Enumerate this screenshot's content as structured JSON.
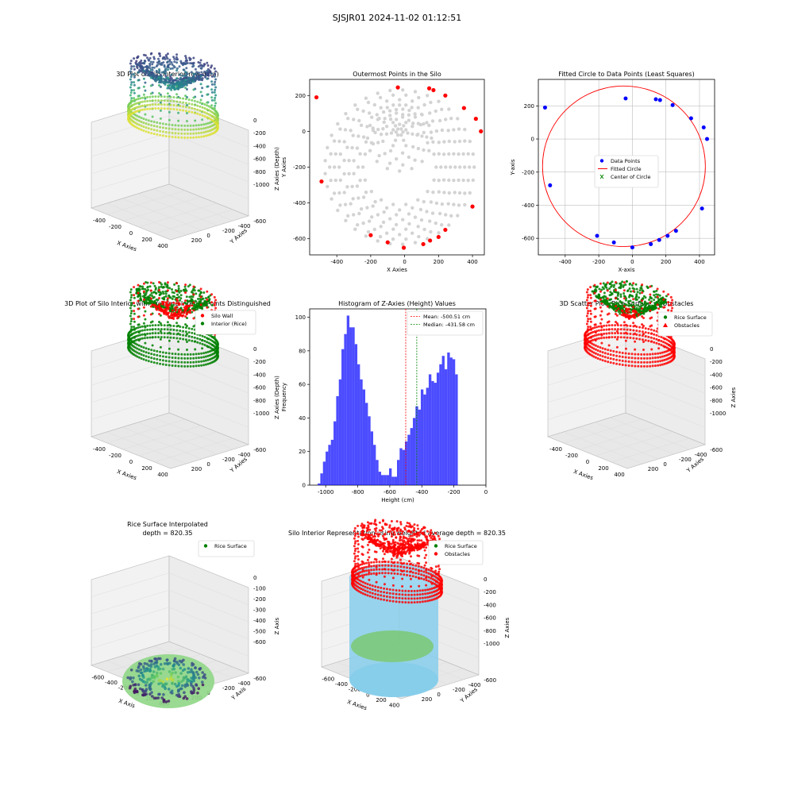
{
  "figure": {
    "suptitle": "SJSJR01 2024-11-02 01:12:51"
  },
  "colors": {
    "wall": "#ff0000",
    "interior": "#008000",
    "data_points": "#0000ff",
    "fitted_circle": "#ff0000",
    "histogram": "#0000ff",
    "mean_line": "#ff0000",
    "median_line": "#008000",
    "outer_points": "#ff0000",
    "inner_points": "#d3d3d3",
    "silo_cylinder": "#87ceeb"
  },
  "chart_data": [
    {
      "id": "p1",
      "type": "scatter3d",
      "title": "3D Plot of Silo Interior(row data)",
      "xlabel": "X Axies",
      "ylabel": "Y Axies",
      "zlabel": "Z Axies (Depth)",
      "xticks": [
        "-400",
        "-200",
        "0",
        "200",
        "400"
      ],
      "yticks": [
        "-600",
        "-400",
        "-200",
        "0",
        "200"
      ],
      "zticks": [
        "0",
        "-200",
        "-400",
        "-600",
        "-800",
        "-1000"
      ],
      "colormap": "viridis",
      "zlim": [
        -1000,
        0
      ]
    },
    {
      "id": "p2",
      "type": "scatter",
      "title": "Outermost Points in the Silo",
      "xlabel": "X Axies",
      "ylabel": "Y Axies",
      "xlim": [
        -560,
        470
      ],
      "ylim": [
        -690,
        290
      ],
      "xticks": [
        -400,
        -200,
        0,
        200,
        400
      ],
      "yticks": [
        -600,
        -400,
        -200,
        0,
        200
      ],
      "outer_points": [
        [
          -520,
          190
        ],
        [
          -490,
          -280
        ],
        [
          -200,
          -580
        ],
        [
          -100,
          -620
        ],
        [
          -5,
          -650
        ],
        [
          110,
          -630
        ],
        [
          150,
          -610
        ],
        [
          200,
          -590
        ],
        [
          240,
          -550
        ],
        [
          400,
          -420
        ],
        [
          450,
          0
        ],
        [
          420,
          70
        ],
        [
          350,
          130
        ],
        [
          240,
          200
        ],
        [
          170,
          230
        ],
        [
          145,
          240
        ],
        [
          -40,
          245
        ]
      ],
      "grid": false
    },
    {
      "id": "p3",
      "type": "scatter",
      "title": "Fitted Circle to Data Points (Least Squares)",
      "xlabel": "X-axis",
      "ylabel": "Y-axis",
      "xlim": [
        -560,
        490
      ],
      "ylim": [
        -700,
        360
      ],
      "xticks": [
        -400,
        -200,
        0,
        200,
        400
      ],
      "yticks": [
        -600,
        -400,
        -200,
        0,
        200
      ],
      "legend": [
        "Data Points",
        "Fitted Circle",
        "Center of Circle"
      ],
      "legend_loc": "center",
      "data_points": [
        [
          -520,
          190
        ],
        [
          -490,
          -280
        ],
        [
          -210,
          -585
        ],
        [
          -110,
          -625
        ],
        [
          0,
          -655
        ],
        [
          110,
          -635
        ],
        [
          160,
          -610
        ],
        [
          210,
          -585
        ],
        [
          260,
          -555
        ],
        [
          415,
          -420
        ],
        [
          445,
          0
        ],
        [
          425,
          70
        ],
        [
          350,
          125
        ],
        [
          240,
          205
        ],
        [
          165,
          235
        ],
        [
          140,
          240
        ],
        [
          -40,
          245
        ]
      ],
      "circle": {
        "cx": -50,
        "cy": -165,
        "r": 485
      },
      "grid": true
    },
    {
      "id": "p4",
      "type": "scatter3d",
      "title": "3D Plot of Silo Interior with Wall and Interior Points Distinguished",
      "xlabel": "X Axies",
      "ylabel": "Y Axies",
      "zlabel": "Z Axies (Depth)",
      "xticks": [
        "-400",
        "-200",
        "0",
        "200",
        "400"
      ],
      "yticks": [
        "-600",
        "-400",
        "-200",
        "0",
        "200"
      ],
      "zticks": [
        "0",
        "-200",
        "-400",
        "-600",
        "-800",
        "-1000"
      ],
      "legend": [
        "Silo Wall",
        "Interior (Rice)"
      ],
      "legend_loc": "top-right"
    },
    {
      "id": "p5",
      "type": "histogram",
      "title": "Histogram of Z-Axies (Height) Values",
      "xlabel": "Height (cm)",
      "ylabel": "Frequency",
      "xlim": [
        -1100,
        0
      ],
      "ylim": [
        0,
        105
      ],
      "xticks": [
        -1000,
        -800,
        -600,
        -400,
        -200,
        0
      ],
      "yticks": [
        0,
        20,
        40,
        60,
        80,
        100
      ],
      "bin_start": -1050,
      "bin_width": 16.5,
      "counts": [
        1,
        7,
        14,
        20,
        24,
        27,
        38,
        53,
        63,
        81,
        90,
        101,
        94,
        94,
        84,
        72,
        63,
        57,
        49,
        41,
        32,
        24,
        15,
        8,
        6,
        6,
        6,
        10,
        5,
        5,
        15,
        22,
        21,
        26,
        30,
        34,
        40,
        47,
        45,
        57,
        54,
        58,
        66,
        62,
        61,
        67,
        72,
        77,
        69,
        79,
        76,
        75,
        66
      ],
      "mean": -500.51,
      "median": -431.58,
      "legend": [
        "Mean: -500.51 cm",
        "Median: -431.58 cm"
      ],
      "legend_loc": "top-right"
    },
    {
      "id": "p6",
      "type": "scatter3d",
      "title": "3D Scatter Plot: Rice Surface vs Obstacles",
      "xlabel": "X Axies",
      "ylabel": "Y Axies",
      "zlabel": "Z Axies",
      "xticks": [
        "-400",
        "-200",
        "0",
        "200",
        "400"
      ],
      "yticks": [
        "-600",
        "-400",
        "-200",
        "0",
        "200"
      ],
      "zticks": [
        "0",
        "-200",
        "-400",
        "-600",
        "-800",
        "-1000"
      ],
      "legend": [
        "Rice Surface",
        "Obstacles"
      ],
      "legend_loc": "top-right"
    },
    {
      "id": "p7",
      "type": "surface3d",
      "title": "Rice Surface Interpolated",
      "subtitle": "depth = 820.35",
      "xlabel": "X Axis",
      "ylabel": "Y Axis",
      "zlabel": "Z Axis",
      "xticks": [
        "-600",
        "-400",
        "-200",
        "0",
        "200",
        "400"
      ],
      "yticks": [
        "-600",
        "-400",
        "-200",
        "0",
        "200"
      ],
      "zticks": [
        "0",
        "-100",
        "-200",
        "-300",
        "-400",
        "-500",
        "-600"
      ],
      "legend": [
        "Rice Surface"
      ],
      "legend_loc": "top-right"
    },
    {
      "id": "p8",
      "type": "scatter3d",
      "title": "Silo Interior Representation using weighted average depth = 820.35",
      "xlabel": "X Axies",
      "ylabel": "Y Axies",
      "zlabel": "Z Axies",
      "xticks": [
        "-600",
        "-400",
        "-200",
        "0",
        "200",
        "400"
      ],
      "yticks": [
        "-600",
        "-400",
        "-200",
        "0",
        "200"
      ],
      "zticks": [
        "0",
        "-200",
        "-400",
        "-600",
        "-800",
        "-1000"
      ],
      "legend": [
        "Rice Surface",
        "Obstacles"
      ],
      "legend_loc": "top-right"
    }
  ]
}
